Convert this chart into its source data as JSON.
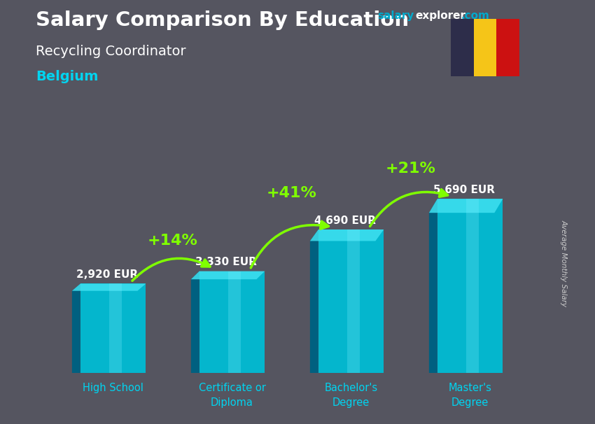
{
  "title": "Salary Comparison By Education",
  "subtitle": "Recycling Coordinator",
  "country": "Belgium",
  "ylabel": "Average Monthly Salary",
  "categories": [
    "High School",
    "Certificate or\nDiploma",
    "Bachelor's\nDegree",
    "Master's\nDegree"
  ],
  "values": [
    2920,
    3330,
    4690,
    5690
  ],
  "value_labels": [
    "2,920 EUR",
    "3,330 EUR",
    "4,690 EUR",
    "5,690 EUR"
  ],
  "pct_labels": [
    "+14%",
    "+41%",
    "+21%"
  ],
  "bar_color_main": "#00bcd4",
  "bar_color_left": "#006080",
  "bar_color_right": "#004d66",
  "bar_color_top": "#40e0f0",
  "bg_color": "#555560",
  "title_color": "#ffffff",
  "subtitle_color": "#ffffff",
  "country_color": "#00d4f0",
  "pct_color": "#7fff00",
  "value_color": "#ffffff",
  "website_salary_color": "#00aacc",
  "website_explorer_color": "#ffffff",
  "website_com_color": "#00aacc",
  "flag_colors": [
    "#2d2d4a",
    "#f5c518",
    "#cc1111"
  ],
  "ylim": [
    0,
    7200
  ],
  "bar_width": 0.55,
  "xtick_color": "#00d4f0"
}
